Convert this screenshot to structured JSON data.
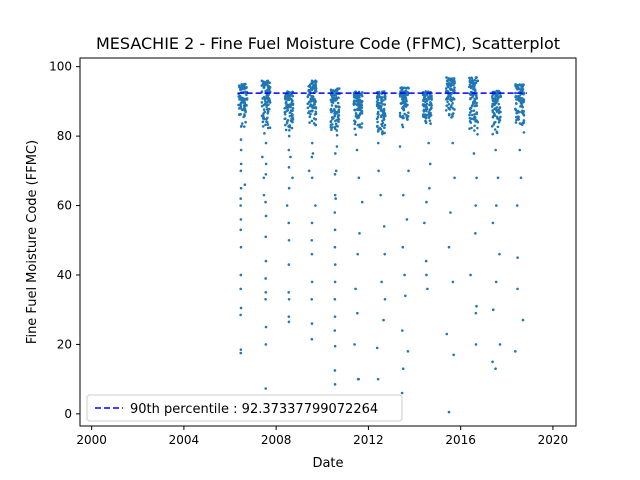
{
  "chart_data": {
    "type": "scatter",
    "title": "MESACHIE 2 - Fine Fuel Moisture Code (FFMC), Scatterplot",
    "xlabel": "Date",
    "ylabel": "Fine Fuel Moisture Code (FFMC)",
    "xlim": [
      "1999-07-01",
      "2021-01-01"
    ],
    "ylim": [
      -3.5,
      102.5
    ],
    "x_ticks": [
      "2000",
      "2004",
      "2008",
      "2012",
      "2016",
      "2020"
    ],
    "x_tick_values": [
      2000,
      2004,
      2008,
      2012,
      2016,
      2020
    ],
    "y_ticks": [
      "0",
      "20",
      "40",
      "60",
      "80",
      "100"
    ],
    "y_tick_values": [
      0,
      20,
      40,
      60,
      80,
      100
    ],
    "grid": false,
    "legend_position": "lower-left",
    "point_color": "#1f77b4",
    "reference_line": {
      "label": "90th percentile : 92.37337799072264",
      "value": 92.37337799072264,
      "style": "dashed",
      "color": "#0000ff",
      "x_range": [
        "2006-05-01",
        "2018-11-15"
      ]
    },
    "fire_seasons": [
      {
        "year": 2006,
        "start": "2006-05-15",
        "end": "2006-09-30"
      },
      {
        "year": 2007,
        "start": "2007-05-15",
        "end": "2007-09-30"
      },
      {
        "year": 2008,
        "start": "2008-05-15",
        "end": "2008-09-30"
      },
      {
        "year": 2009,
        "start": "2009-05-15",
        "end": "2009-09-30"
      },
      {
        "year": 2010,
        "start": "2010-05-15",
        "end": "2010-09-30"
      },
      {
        "year": 2011,
        "start": "2011-05-15",
        "end": "2011-09-30"
      },
      {
        "year": 2012,
        "start": "2012-05-15",
        "end": "2012-09-30"
      },
      {
        "year": 2013,
        "start": "2013-05-15",
        "end": "2013-09-30"
      },
      {
        "year": 2014,
        "start": "2014-05-15",
        "end": "2014-09-30"
      },
      {
        "year": 2015,
        "start": "2015-05-15",
        "end": "2015-09-30"
      },
      {
        "year": 2016,
        "start": "2016-05-15",
        "end": "2016-09-30"
      },
      {
        "year": 2017,
        "start": "2017-05-15",
        "end": "2017-09-30"
      },
      {
        "year": 2018,
        "start": "2018-05-15",
        "end": "2018-09-30"
      }
    ],
    "points": [
      {
        "x": "2006-06-20",
        "y": 17.5
      },
      {
        "x": "2006-06-22",
        "y": 18.5
      },
      {
        "x": "2006-06-18",
        "y": 28.5
      },
      {
        "x": "2006-06-24",
        "y": 30.5
      },
      {
        "x": "2006-06-19",
        "y": 36
      },
      {
        "x": "2006-06-21",
        "y": 40
      },
      {
        "x": "2006-06-23",
        "y": 48
      },
      {
        "x": "2006-06-20",
        "y": 53
      },
      {
        "x": "2006-06-22",
        "y": 56
      },
      {
        "x": "2006-06-18",
        "y": 60
      },
      {
        "x": "2006-06-25",
        "y": 65
      },
      {
        "x": "2006-06-21",
        "y": 70
      },
      {
        "x": "2006-06-26",
        "y": 76
      },
      {
        "x": "2006-06-24",
        "y": 79
      },
      {
        "x": "2007-07-20",
        "y": 7.3
      },
      {
        "x": "2007-07-22",
        "y": 20
      },
      {
        "x": "2007-07-24",
        "y": 25
      },
      {
        "x": "2007-07-18",
        "y": 33
      },
      {
        "x": "2007-07-21",
        "y": 35
      },
      {
        "x": "2007-07-19",
        "y": 39
      },
      {
        "x": "2007-07-23",
        "y": 44
      },
      {
        "x": "2007-07-20",
        "y": 51
      },
      {
        "x": "2007-07-25",
        "y": 57
      },
      {
        "x": "2007-07-17",
        "y": 61
      },
      {
        "x": "2007-07-22",
        "y": 69
      },
      {
        "x": "2007-07-26",
        "y": 72
      },
      {
        "x": "2007-07-24",
        "y": 78
      },
      {
        "x": "2008-07-22",
        "y": 26.5
      },
      {
        "x": "2008-07-20",
        "y": 28
      },
      {
        "x": "2008-07-24",
        "y": 33
      },
      {
        "x": "2008-07-18",
        "y": 35
      },
      {
        "x": "2008-07-21",
        "y": 43
      },
      {
        "x": "2008-07-23",
        "y": 50
      },
      {
        "x": "2008-07-19",
        "y": 55
      },
      {
        "x": "2008-07-25",
        "y": 65
      },
      {
        "x": "2008-07-22",
        "y": 71
      },
      {
        "x": "2008-07-20",
        "y": 76
      },
      {
        "x": "2008-07-26",
        "y": 80
      },
      {
        "x": "2009-07-20",
        "y": 21.5
      },
      {
        "x": "2009-07-22",
        "y": 26
      },
      {
        "x": "2009-07-18",
        "y": 33
      },
      {
        "x": "2009-07-24",
        "y": 38
      },
      {
        "x": "2009-07-21",
        "y": 46
      },
      {
        "x": "2009-07-19",
        "y": 50
      },
      {
        "x": "2009-07-23",
        "y": 55
      },
      {
        "x": "2009-07-25",
        "y": 68
      },
      {
        "x": "2009-07-21",
        "y": 74
      },
      {
        "x": "2009-07-26",
        "y": 78
      },
      {
        "x": "2010-07-22",
        "y": 8.5
      },
      {
        "x": "2010-07-20",
        "y": 12.5
      },
      {
        "x": "2010-07-24",
        "y": 19.5
      },
      {
        "x": "2010-07-18",
        "y": 24
      },
      {
        "x": "2010-07-21",
        "y": 28
      },
      {
        "x": "2010-07-19",
        "y": 33
      },
      {
        "x": "2010-07-23",
        "y": 38
      },
      {
        "x": "2010-07-25",
        "y": 43
      },
      {
        "x": "2010-07-20",
        "y": 48
      },
      {
        "x": "2010-07-22",
        "y": 53
      },
      {
        "x": "2010-07-18",
        "y": 58
      },
      {
        "x": "2010-07-24",
        "y": 63
      },
      {
        "x": "2010-07-21",
        "y": 69
      },
      {
        "x": "2010-07-26",
        "y": 75
      },
      {
        "x": "2011-07-22",
        "y": 10
      }
    ]
  },
  "series_summary": [
    {
      "year": 2006,
      "upper_band": [
        82,
        95
      ],
      "mid_values": [
        62,
        66,
        72,
        84
      ]
    },
    {
      "year": 2007,
      "upper_band": [
        80,
        96
      ],
      "mid_values": [
        63,
        68,
        74,
        86
      ]
    },
    {
      "year": 2008,
      "upper_band": [
        81,
        93
      ],
      "mid_values": [
        60,
        68,
        74,
        86
      ]
    },
    {
      "year": 2009,
      "upper_band": [
        82,
        96
      ],
      "mid_values": [
        60,
        70,
        75,
        87
      ]
    },
    {
      "year": 2010,
      "upper_band": [
        80,
        94
      ],
      "mid_values": [
        62,
        70,
        77,
        86
      ]
    },
    {
      "year": 2011,
      "upper_band": [
        80,
        93
      ],
      "mid_values": [
        10,
        20,
        29,
        36,
        46,
        52,
        61,
        68,
        76,
        86
      ]
    },
    {
      "year": 2012,
      "upper_band": [
        80,
        93
      ],
      "mid_values": [
        10,
        19,
        27,
        33,
        38,
        46,
        54,
        63,
        70,
        78,
        86
      ]
    },
    {
      "year": 2013,
      "upper_band": [
        82,
        94
      ],
      "mid_values": [
        6,
        13,
        18,
        24,
        34,
        40,
        48,
        56,
        63,
        70,
        77,
        86
      ]
    },
    {
      "year": 2014,
      "upper_band": [
        82,
        93
      ],
      "mid_values": [
        36,
        40,
        44,
        55,
        61,
        65,
        72,
        78,
        86
      ]
    },
    {
      "year": 2015,
      "upper_band": [
        84,
        97
      ],
      "mid_values": [
        0.5,
        17,
        23,
        38,
        48,
        58,
        68,
        78,
        88
      ]
    },
    {
      "year": 2016,
      "upper_band": [
        80,
        97
      ],
      "mid_values": [
        20,
        29,
        31,
        40,
        52,
        60,
        68,
        75,
        84
      ]
    },
    {
      "year": 2017,
      "upper_band": [
        80,
        93
      ],
      "mid_values": [
        13,
        15,
        20,
        30,
        38,
        46,
        55,
        60,
        68,
        76,
        84
      ]
    },
    {
      "year": 2018,
      "upper_band": [
        80,
        95
      ],
      "mid_values": [
        18,
        27,
        36,
        45,
        60,
        68,
        76,
        86
      ]
    }
  ]
}
